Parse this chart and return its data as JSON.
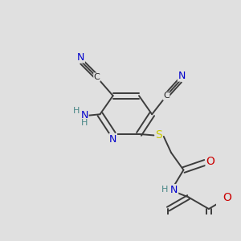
{
  "bg_color": "#e0e0e0",
  "bond_color": "#3c3c3c",
  "bond_lw": 1.4,
  "dbo": 0.055,
  "colors": {
    "N": "#0000cc",
    "S": "#cccc00",
    "O": "#cc0000",
    "H": "#4a8888",
    "C": "#222222"
  },
  "figsize": [
    3.0,
    3.0
  ],
  "dpi": 100
}
